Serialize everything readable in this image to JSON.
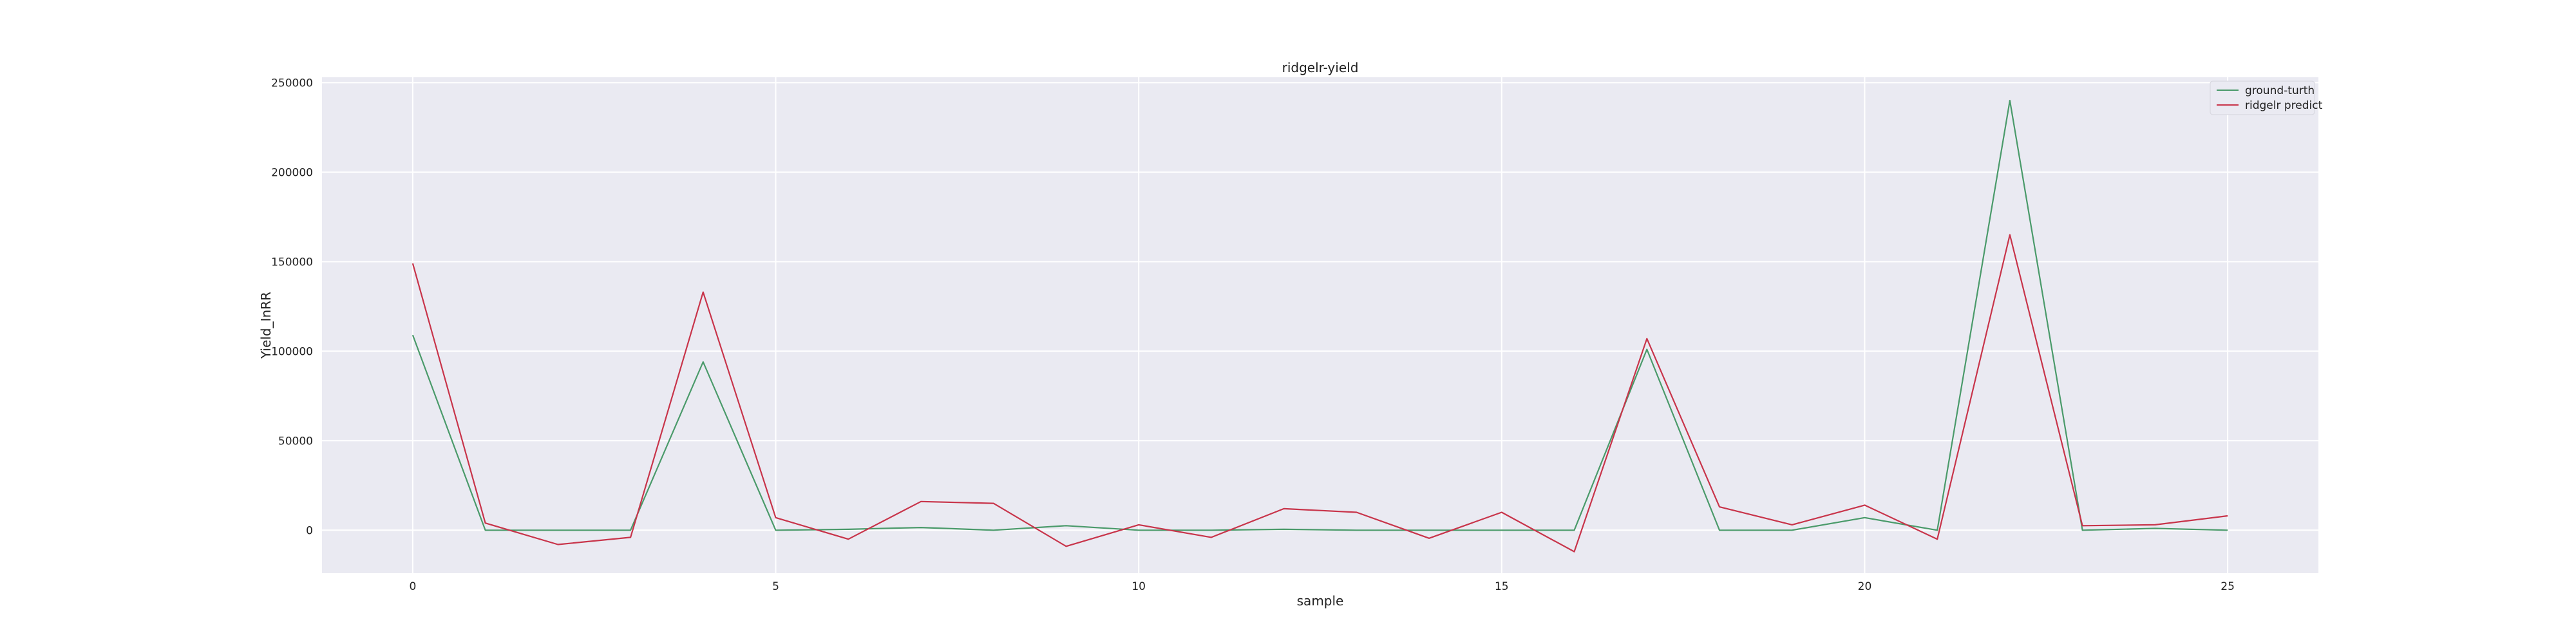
{
  "chart_data": {
    "type": "line",
    "title": "ridgelr-yield",
    "xlabel": "sample",
    "ylabel": "Yield_InRR",
    "x": [
      0,
      1,
      2,
      3,
      4,
      5,
      6,
      7,
      8,
      9,
      10,
      11,
      12,
      13,
      14,
      15,
      16,
      17,
      18,
      19,
      20,
      21,
      22,
      23,
      24,
      25
    ],
    "xlim": [
      -1.25,
      26.25
    ],
    "ylim": [
      -24000,
      253000
    ],
    "xticks": [
      0,
      5,
      10,
      15,
      20,
      25
    ],
    "yticks": [
      0,
      50000,
      100000,
      150000,
      200000,
      250000
    ],
    "grid": true,
    "legend_position": "top-right",
    "series": [
      {
        "name": "ground-turth",
        "color": "#4a9a6a",
        "values": [
          109000,
          0,
          0,
          0,
          94000,
          0,
          500,
          1500,
          0,
          2500,
          0,
          0,
          500,
          0,
          0,
          0,
          0,
          101000,
          0,
          0,
          7000,
          0,
          240000,
          0,
          1000,
          0
        ]
      },
      {
        "name": "ridgelr predict",
        "color": "#c8344a",
        "values": [
          149000,
          4000,
          -8000,
          -4000,
          133000,
          7000,
          -5000,
          16000,
          15000,
          -9000,
          3000,
          -4000,
          12000,
          10000,
          -4500,
          10000,
          -12000,
          107000,
          13000,
          3000,
          14000,
          -5000,
          165000,
          2500,
          3000,
          8000
        ]
      }
    ]
  }
}
